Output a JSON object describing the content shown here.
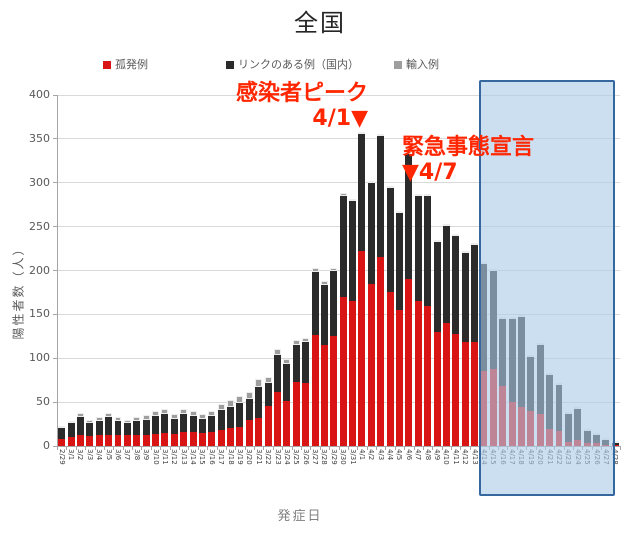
{
  "title": "全国",
  "annotations": [
    {
      "name": "infection-peak",
      "lines": [
        "感染者ピーク",
        "4/1▼"
      ]
    },
    {
      "name": "state-of-emergency",
      "lines": [
        "緊急事態宣言",
        "▼4/7"
      ]
    }
  ],
  "highlight": {
    "start": "4/14",
    "end": "4/27",
    "fill": "rgba(173,204,232,0.62)",
    "border": "#35689f"
  },
  "chart_data": {
    "type": "bar",
    "stacked": true,
    "title": "全国",
    "xlabel": "発症日",
    "ylabel": "陽性者数（人）",
    "ylim": [
      0,
      400
    ],
    "yticks": [
      0,
      50,
      100,
      150,
      200,
      250,
      300,
      350,
      400
    ],
    "grid": "horizontal",
    "legend_position": "top",
    "categories": [
      "2/29",
      "3/1",
      "3/2",
      "3/3",
      "3/4",
      "3/5",
      "3/6",
      "3/7",
      "3/8",
      "3/9",
      "3/10",
      "3/11",
      "3/12",
      "3/13",
      "3/14",
      "3/15",
      "3/16",
      "3/17",
      "3/18",
      "3/19",
      "3/20",
      "3/21",
      "3/22",
      "3/23",
      "3/24",
      "3/25",
      "3/26",
      "3/27",
      "3/28",
      "3/29",
      "3/30",
      "3/31",
      "4/1",
      "4/2",
      "4/3",
      "4/4",
      "4/5",
      "4/6",
      "4/7",
      "4/8",
      "4/9",
      "4/10",
      "4/11",
      "4/12",
      "4/13",
      "4/14",
      "4/15",
      "4/16",
      "4/17",
      "4/18",
      "4/19",
      "4/20",
      "4/21",
      "4/22",
      "4/23",
      "4/24",
      "4/25",
      "4/26",
      "4/27",
      "4/28"
    ],
    "series": [
      {
        "key": "isolated",
        "name": "孤発例",
        "color": "#d91414",
        "values": [
          8,
          10,
          12,
          11,
          12,
          13,
          12,
          12,
          13,
          13,
          14,
          15,
          14,
          16,
          16,
          15,
          16,
          18,
          20,
          22,
          30,
          32,
          46,
          61,
          51,
          73,
          72,
          126,
          115,
          125,
          170,
          165,
          222,
          185,
          215,
          175,
          155,
          190,
          165,
          160,
          130,
          140,
          128,
          118,
          118,
          85,
          88,
          68,
          50,
          44,
          40,
          36,
          19,
          17,
          5,
          7,
          4,
          3,
          1,
          1
        ]
      },
      {
        "key": "linked",
        "name": "リンクのある例（国内）",
        "color": "#2b2b2b",
        "values": [
          12,
          16,
          21,
          15,
          17,
          20,
          17,
          14,
          16,
          17,
          20,
          21,
          17,
          20,
          18,
          16,
          18,
          23,
          24,
          27,
          24,
          35,
          26,
          43,
          42,
          42,
          46,
          72,
          69,
          74,
          115,
          114,
          134,
          115,
          138,
          119,
          110,
          143,
          120,
          125,
          103,
          111,
          111,
          102,
          111,
          122,
          112,
          77,
          95,
          103,
          61,
          79,
          62,
          53,
          31,
          35,
          13,
          10,
          6,
          2
        ]
      },
      {
        "key": "imported",
        "name": "輸入例",
        "color": "#9e9e9e",
        "values": [
          2,
          2,
          5,
          4,
          4,
          5,
          4,
          4,
          4,
          5,
          6,
          6,
          5,
          6,
          6,
          5,
          6,
          7,
          8,
          8,
          8,
          9,
          7,
          7,
          6,
          6,
          5,
          5,
          4,
          4,
          3,
          3,
          2,
          2,
          2,
          2,
          2,
          2,
          2,
          2,
          2,
          2,
          1,
          1,
          1,
          1,
          1,
          1,
          1,
          1,
          1,
          1,
          0,
          0,
          0,
          0,
          0,
          0,
          0,
          0
        ]
      }
    ],
    "totals_note": "bar totals = isolated + linked + imported; peak 358 on 4/1"
  }
}
